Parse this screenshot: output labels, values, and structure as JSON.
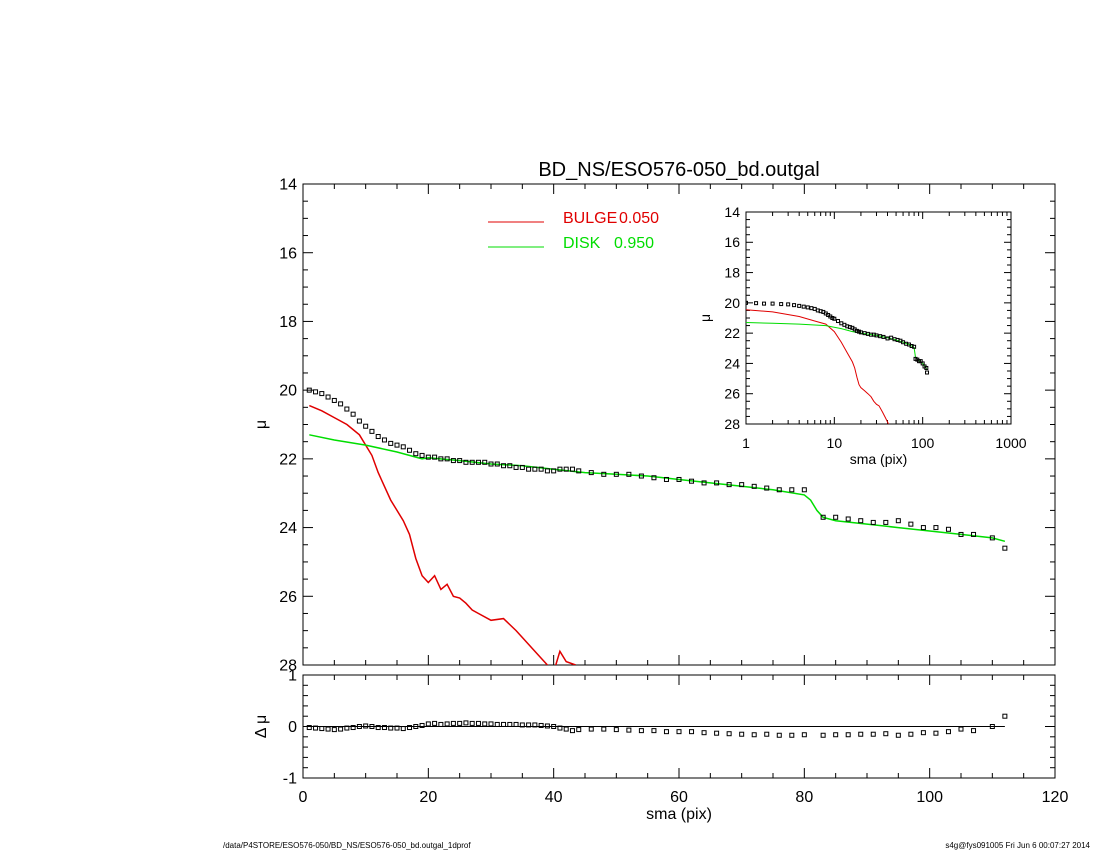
{
  "page": {
    "title": "BD_NS/ESO576-050_bd.outgal",
    "footer_left": "/data/P4STORE/ESO576-050/BD_NS/ESO576-050_bd.outgal_1dprof",
    "footer_right": "s4g@fys091005  Fri Jun  6 00:07:27 2014"
  },
  "legend": {
    "bulge": {
      "label": "BULGE",
      "value": "0.050",
      "color": "#e00000"
    },
    "disk": {
      "label": "DISK",
      "value": "0.950",
      "color": "#00dd00"
    }
  },
  "colors": {
    "bulge": "#e00000",
    "disk": "#00dd00",
    "data": "#000000",
    "axis": "#000000"
  },
  "chart_data": [
    {
      "id": "main",
      "type": "scatter",
      "title": "BD_NS/ESO576-050_bd.outgal",
      "xlabel": "",
      "ylabel": "μ",
      "xlim": [
        0,
        120
      ],
      "ylim": [
        28,
        14
      ],
      "y_inverted": true,
      "xticks": [
        0,
        20,
        40,
        60,
        80,
        100,
        120
      ],
      "yticks": [
        14,
        16,
        18,
        20,
        22,
        24,
        26,
        28
      ],
      "legend_position": "top-center",
      "series": [
        {
          "name": "BULGE  0.050",
          "kind": "line",
          "color": "#e00000",
          "x": [
            1,
            3,
            5,
            7,
            9,
            11,
            12,
            14,
            16,
            17,
            18,
            19,
            20,
            21,
            22,
            23,
            24,
            25,
            26,
            27,
            28,
            30,
            32,
            34,
            36,
            38,
            40,
            41,
            42,
            43.5
          ],
          "y": [
            20.45,
            20.6,
            20.8,
            21.0,
            21.3,
            21.9,
            22.4,
            23.2,
            23.8,
            24.2,
            24.9,
            25.4,
            25.6,
            25.4,
            25.8,
            25.65,
            26.0,
            26.05,
            26.2,
            26.4,
            26.5,
            26.7,
            26.65,
            27.0,
            27.4,
            27.8,
            28.2,
            27.6,
            27.9,
            28.0
          ]
        },
        {
          "name": "DISK  0.950",
          "kind": "line",
          "color": "#00dd00",
          "x": [
            1,
            5,
            10,
            15,
            18,
            19,
            20,
            25,
            30,
            35,
            40,
            45,
            50,
            55,
            60,
            65,
            70,
            75,
            80,
            81,
            82,
            83,
            85,
            90,
            95,
            100,
            105,
            110,
            112
          ],
          "y": [
            21.3,
            21.45,
            21.6,
            21.8,
            21.95,
            22.0,
            21.97,
            22.05,
            22.15,
            22.2,
            22.3,
            22.4,
            22.45,
            22.5,
            22.6,
            22.7,
            22.8,
            22.9,
            23.05,
            23.2,
            23.5,
            23.7,
            23.8,
            23.9,
            24.0,
            24.1,
            24.2,
            24.3,
            24.4
          ]
        },
        {
          "name": "",
          "kind": "points",
          "color": "#000000",
          "x": [
            1,
            2,
            3,
            4,
            5,
            6,
            7,
            8,
            9,
            10,
            11,
            12,
            13,
            14,
            15,
            16,
            17,
            18,
            19,
            20,
            21,
            22,
            23,
            24,
            25,
            26,
            27,
            28,
            29,
            30,
            31,
            32,
            33,
            34,
            35,
            36,
            37,
            38,
            39,
            40,
            41,
            42,
            43,
            44,
            46,
            48,
            50,
            52,
            54,
            56,
            58,
            60,
            62,
            64,
            66,
            68,
            70,
            72,
            74,
            76,
            78,
            80,
            83,
            85,
            87,
            89,
            91,
            93,
            95,
            97,
            99,
            101,
            103,
            105,
            107,
            110,
            112
          ],
          "y": [
            20.0,
            20.05,
            20.1,
            20.2,
            20.3,
            20.4,
            20.55,
            20.7,
            20.9,
            21.05,
            21.2,
            21.35,
            21.45,
            21.55,
            21.6,
            21.65,
            21.75,
            21.85,
            21.9,
            21.95,
            21.95,
            22.0,
            22.0,
            22.05,
            22.05,
            22.1,
            22.1,
            22.1,
            22.1,
            22.15,
            22.15,
            22.2,
            22.2,
            22.25,
            22.25,
            22.3,
            22.3,
            22.3,
            22.35,
            22.35,
            22.3,
            22.3,
            22.3,
            22.35,
            22.4,
            22.45,
            22.45,
            22.45,
            22.5,
            22.55,
            22.6,
            22.6,
            22.65,
            22.7,
            22.7,
            22.75,
            22.75,
            22.8,
            22.85,
            22.9,
            22.9,
            22.9,
            23.7,
            23.7,
            23.75,
            23.8,
            23.85,
            23.85,
            23.8,
            23.9,
            24.0,
            24.0,
            24.05,
            24.2,
            24.2,
            24.3,
            24.6
          ]
        }
      ]
    },
    {
      "id": "residual",
      "type": "scatter",
      "xlabel": "sma (pix)",
      "ylabel": "Δ μ",
      "xlim": [
        0,
        120
      ],
      "ylim": [
        -1,
        1
      ],
      "xticks": [
        0,
        20,
        40,
        60,
        80,
        100,
        120
      ],
      "yticks": [
        -1,
        0,
        1
      ],
      "series": [
        {
          "name": "",
          "kind": "points",
          "color": "#000000",
          "x": [
            1,
            2,
            3,
            4,
            5,
            6,
            7,
            8,
            9,
            10,
            11,
            12,
            13,
            14,
            15,
            16,
            17,
            18,
            19,
            20,
            21,
            22,
            23,
            24,
            25,
            26,
            27,
            28,
            29,
            30,
            31,
            32,
            33,
            34,
            35,
            36,
            37,
            38,
            39,
            40,
            41,
            42,
            43,
            44,
            46,
            48,
            50,
            52,
            54,
            56,
            58,
            60,
            62,
            64,
            66,
            68,
            70,
            72,
            74,
            76,
            78,
            80,
            83,
            85,
            87,
            89,
            91,
            93,
            95,
            97,
            99,
            101,
            103,
            105,
            107,
            110,
            112
          ],
          "y": [
            -0.02,
            -0.03,
            -0.04,
            -0.05,
            -0.06,
            -0.05,
            -0.03,
            -0.02,
            0.0,
            0.01,
            0.0,
            -0.02,
            -0.02,
            -0.03,
            -0.03,
            -0.04,
            -0.02,
            0.0,
            0.02,
            0.05,
            0.06,
            0.04,
            0.05,
            0.06,
            0.06,
            0.07,
            0.06,
            0.06,
            0.05,
            0.05,
            0.04,
            0.04,
            0.04,
            0.04,
            0.03,
            0.03,
            0.03,
            0.02,
            0.01,
            0.0,
            -0.03,
            -0.05,
            -0.08,
            -0.06,
            -0.05,
            -0.05,
            -0.06,
            -0.07,
            -0.08,
            -0.08,
            -0.1,
            -0.1,
            -0.1,
            -0.12,
            -0.13,
            -0.14,
            -0.15,
            -0.16,
            -0.15,
            -0.17,
            -0.17,
            -0.16,
            -0.17,
            -0.16,
            -0.16,
            -0.15,
            -0.15,
            -0.14,
            -0.17,
            -0.15,
            -0.12,
            -0.13,
            -0.1,
            -0.05,
            -0.08,
            0.0,
            0.2
          ]
        }
      ]
    },
    {
      "id": "inset",
      "type": "line",
      "xlabel": "sma (pix)",
      "ylabel": "μ",
      "xscale": "log",
      "xlim": [
        1,
        1000
      ],
      "ylim": [
        28,
        14
      ],
      "y_inverted": true,
      "xticks": [
        1,
        10,
        100,
        1000
      ],
      "yticks": [
        14,
        16,
        18,
        20,
        22,
        24,
        26,
        28
      ],
      "series": [
        {
          "name": "",
          "kind": "line",
          "color": "#e00000",
          "x": [
            1,
            2,
            4,
            6,
            8,
            10,
            12,
            14,
            16,
            17,
            18,
            19,
            20,
            22,
            24,
            26,
            28,
            30,
            32,
            35,
            38,
            41,
            43
          ],
          "y": [
            20.45,
            20.6,
            20.9,
            21.2,
            21.4,
            21.9,
            22.6,
            23.3,
            23.9,
            24.3,
            24.9,
            25.4,
            25.6,
            25.8,
            26.0,
            26.2,
            26.5,
            26.7,
            26.8,
            27.2,
            27.6,
            28.0,
            28.2
          ]
        },
        {
          "name": "",
          "kind": "line",
          "color": "#00dd00",
          "x": [
            1,
            2,
            4,
            8,
            12,
            16,
            20,
            30,
            40,
            50,
            60,
            70,
            80,
            83,
            90,
            100,
            112
          ],
          "y": [
            21.3,
            21.35,
            21.4,
            21.5,
            21.7,
            21.9,
            22.0,
            22.15,
            22.3,
            22.45,
            22.6,
            22.75,
            22.95,
            23.6,
            23.8,
            24.0,
            24.4
          ]
        },
        {
          "name": "",
          "kind": "points",
          "color": "#000000",
          "x": [
            1,
            1.3,
            1.6,
            2,
            2.5,
            3,
            3.5,
            4,
            4.5,
            5,
            5.5,
            6,
            6.5,
            7,
            7.5,
            8,
            8.5,
            9,
            9.5,
            10,
            11,
            12,
            13,
            14,
            15,
            16,
            17,
            18,
            19,
            20,
            22,
            24,
            26,
            28,
            30,
            33,
            36,
            40,
            44,
            48,
            52,
            56,
            60,
            65,
            70,
            75,
            80,
            83,
            87,
            91,
            95,
            100,
            105,
            110,
            112
          ],
          "y": [
            20.0,
            20.02,
            20.05,
            20.05,
            20.08,
            20.1,
            20.15,
            20.2,
            20.25,
            20.3,
            20.35,
            20.4,
            20.5,
            20.55,
            20.6,
            20.7,
            20.8,
            20.9,
            21.0,
            21.05,
            21.2,
            21.35,
            21.45,
            21.55,
            21.6,
            21.65,
            21.75,
            21.85,
            21.9,
            21.95,
            22.0,
            22.05,
            22.1,
            22.1,
            22.15,
            22.2,
            22.25,
            22.35,
            22.3,
            22.4,
            22.45,
            22.5,
            22.6,
            22.7,
            22.75,
            22.85,
            22.9,
            23.7,
            23.75,
            23.85,
            23.85,
            24.0,
            24.2,
            24.3,
            24.6
          ]
        }
      ]
    }
  ]
}
